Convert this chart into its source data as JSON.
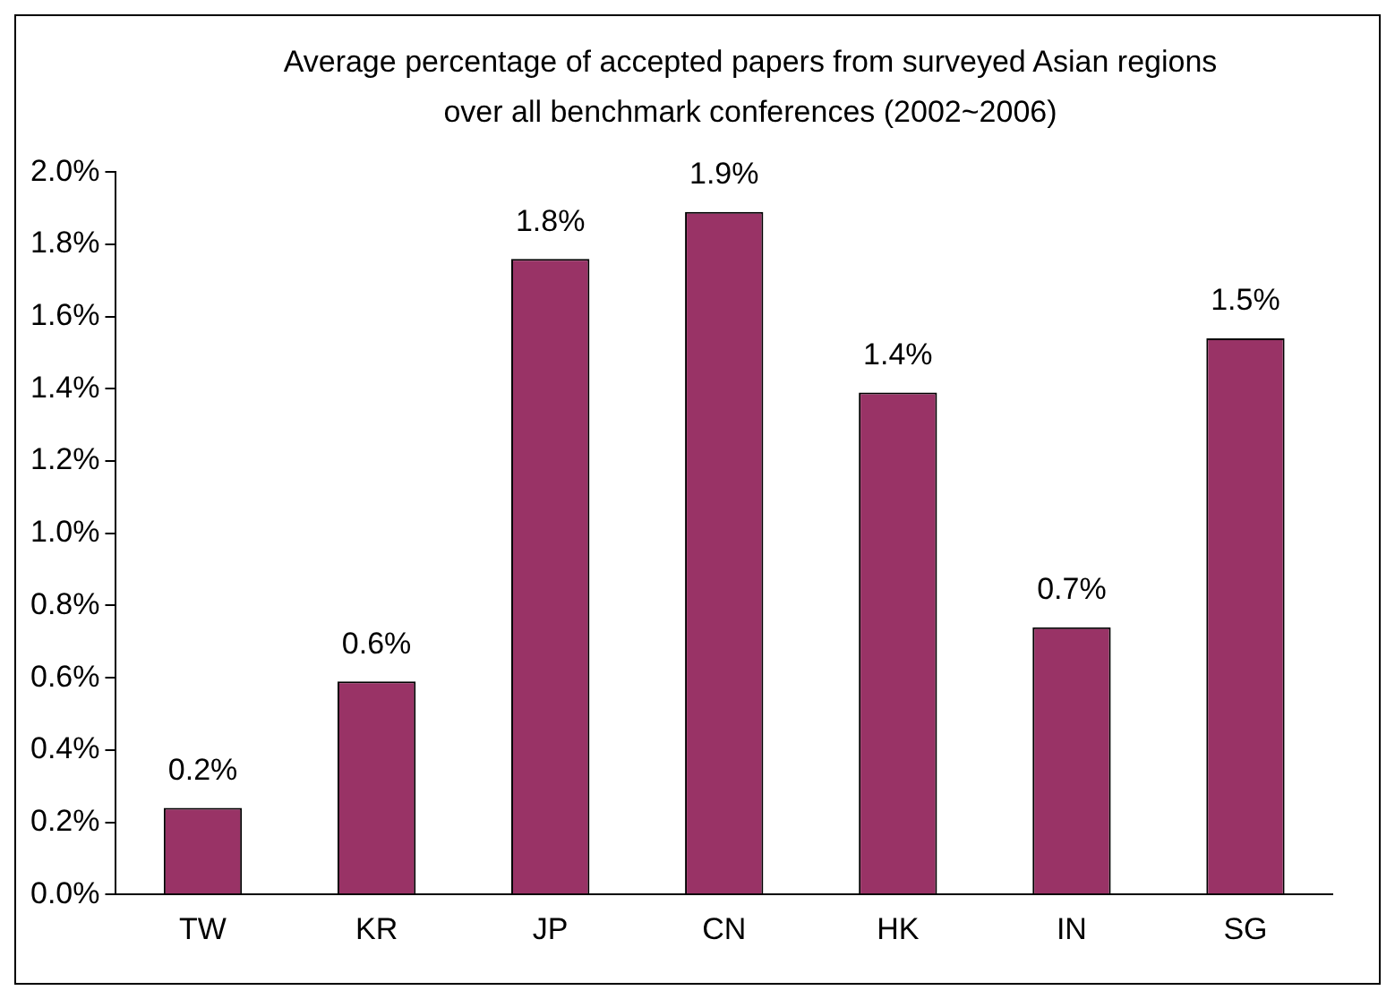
{
  "chart_data": {
    "type": "bar",
    "title": "Average percentage of accepted papers from surveyed Asian regions over all benchmark conferences (2002~2006)",
    "categories": [
      "TW",
      "KR",
      "JP",
      "CN",
      "HK",
      "IN",
      "SG"
    ],
    "values": [
      0.24,
      0.59,
      1.76,
      1.89,
      1.39,
      0.74,
      1.54
    ],
    "value_labels": [
      "0.2%",
      "0.6%",
      "1.8%",
      "1.9%",
      "1.4%",
      "0.7%",
      "1.5%"
    ],
    "color": "#993366",
    "ylim": [
      0,
      2.0
    ],
    "yticks": [
      {
        "value": 0,
        "label": "0.0%"
      },
      {
        "value": 0.2,
        "label": "0.2%"
      },
      {
        "value": 0.4,
        "label": "0.4%"
      },
      {
        "value": 0.6,
        "label": "0.6%"
      },
      {
        "value": 0.8,
        "label": "0.8%"
      },
      {
        "value": 1.0,
        "label": "1.0%"
      },
      {
        "value": 1.2,
        "label": "1.2%"
      },
      {
        "value": 1.4,
        "label": "1.4%"
      },
      {
        "value": 1.6,
        "label": "1.6%"
      },
      {
        "value": 1.8,
        "label": "1.8%"
      },
      {
        "value": 2.0,
        "label": "2.0%"
      }
    ],
    "grid": false,
    "legend": false
  }
}
